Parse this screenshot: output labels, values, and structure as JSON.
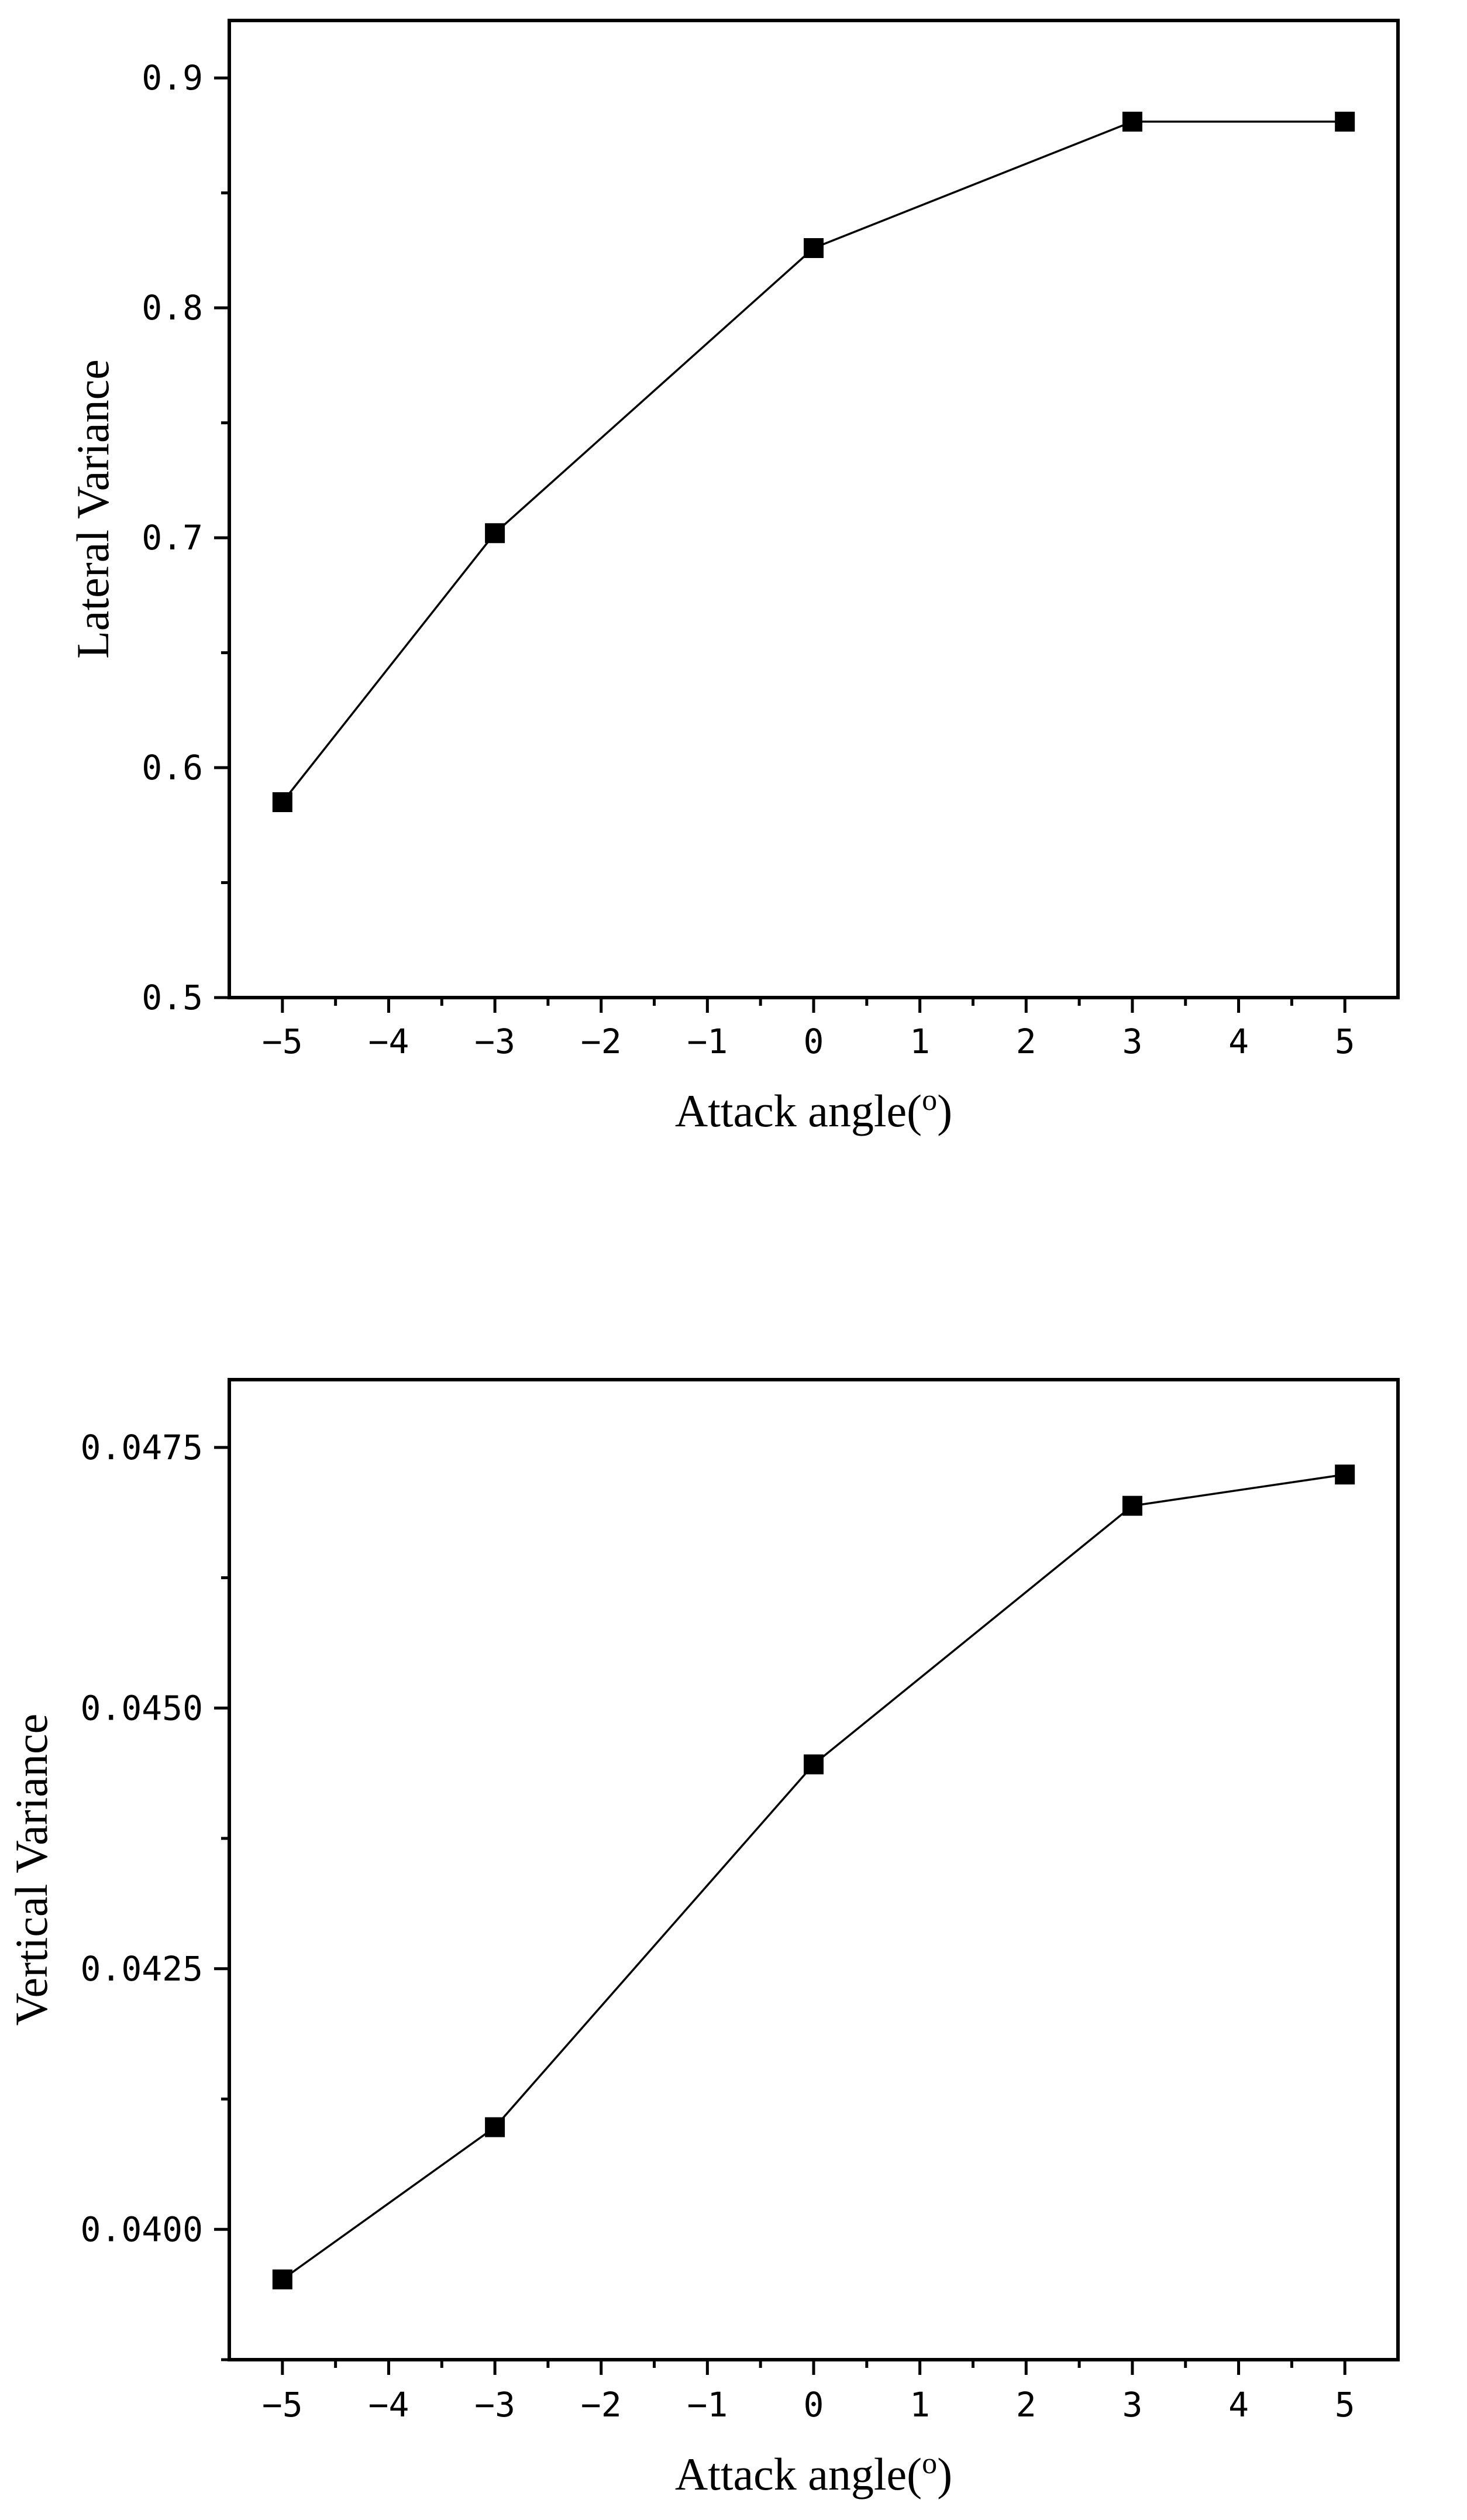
{
  "chart_data": [
    {
      "type": "line",
      "xlabel": "Attack angle(o)",
      "ylabel": "Lateral Variance",
      "xlim": [
        -5.5,
        5.5
      ],
      "ylim": [
        0.5,
        0.925
      ],
      "x_ticks": [
        -5,
        -4,
        -3,
        -2,
        -1,
        0,
        1,
        2,
        3,
        4,
        5
      ],
      "x_tick_labels": [
        "−5",
        "−4",
        "−3",
        "−2",
        "−1",
        "0",
        "1",
        "2",
        "3",
        "4",
        "5"
      ],
      "y_ticks": [
        0.5,
        0.6,
        0.7,
        0.8,
        0.9
      ],
      "y_tick_labels": [
        "0.5",
        "0.6",
        "0.7",
        "0.8",
        "0.9"
      ],
      "y_minor_ticks": [
        0.55,
        0.65,
        0.75,
        0.85
      ],
      "marker": "square",
      "grid": false,
      "series": [
        {
          "x": [
            -5,
            -3,
            0,
            3,
            5
          ],
          "y": [
            0.585,
            0.702,
            0.826,
            0.881,
            0.881
          ]
        }
      ]
    },
    {
      "type": "line",
      "xlabel": "Attack angle(o)",
      "ylabel": "Vertical Variance",
      "xlim": [
        -5.5,
        5.5
      ],
      "ylim": [
        0.03875,
        0.04815
      ],
      "x_ticks": [
        -5,
        -4,
        -3,
        -2,
        -1,
        0,
        1,
        2,
        3,
        4,
        5
      ],
      "x_tick_labels": [
        "−5",
        "−4",
        "−3",
        "−2",
        "−1",
        "0",
        "1",
        "2",
        "3",
        "4",
        "5"
      ],
      "y_ticks": [
        0.04,
        0.0425,
        0.045,
        0.0475
      ],
      "y_tick_labels": [
        "0.0400",
        "0.0425",
        "0.0450",
        "0.0475"
      ],
      "y_minor_ticks": [
        0.03875,
        0.04125,
        0.04375,
        0.04625
      ],
      "marker": "square",
      "grid": false,
      "series": [
        {
          "x": [
            -5,
            -3,
            0,
            3,
            5
          ],
          "y": [
            0.03952,
            0.04098,
            0.04446,
            0.04694,
            0.04724
          ]
        }
      ]
    }
  ]
}
